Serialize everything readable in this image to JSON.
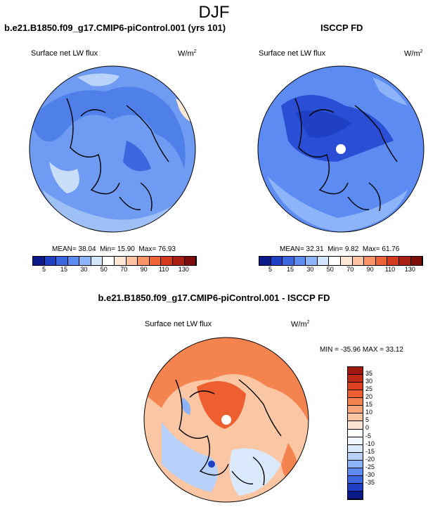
{
  "page_title": "DJF",
  "colors": {
    "seq": [
      "#0a1a8a",
      "#1f3fc4",
      "#3b68e0",
      "#5c8bf2",
      "#8db3f8",
      "#d2e6fb",
      "#ffffff",
      "#fde7d6",
      "#fbc3a2",
      "#f89466",
      "#ee6436",
      "#d63a1e",
      "#a81e12",
      "#7d0c0a"
    ],
    "diff": [
      "#0a1a8a",
      "#1f3fc4",
      "#3b68e0",
      "#5c8bf2",
      "#8db3f8",
      "#b7d1fa",
      "#d9e8fb",
      "#f0f6fd",
      "#ffffff",
      "#fde4d3",
      "#fbc6a3",
      "#f9a67a",
      "#f5834f",
      "#ed5f30",
      "#dc4020",
      "#c12a16",
      "#a1180f"
    ],
    "land": "#000000"
  },
  "chart_data": [
    {
      "type": "heatmap",
      "projection": "north-polar-stereographic",
      "title": "b.e21.B1850.f09_g17.CMIP6-piControl.001 (yrs 101)",
      "variable": "Surface net LW flux",
      "units": "W/m",
      "units_exp": "2",
      "mean": "38.04",
      "min": "15.90",
      "max": "76.93",
      "colorbar_levels": [
        "5",
        "15",
        "30",
        "50",
        "70",
        "90",
        "110",
        "130"
      ],
      "colorbar_ticks": [
        5,
        15,
        30,
        50,
        70,
        90,
        110,
        130
      ]
    },
    {
      "type": "heatmap",
      "projection": "north-polar-stereographic",
      "title": "ISCCP FD",
      "variable": "Surface net LW flux",
      "units": "W/m",
      "units_exp": "2",
      "mean": "32.31",
      "min": "9.82",
      "max": "61.76",
      "colorbar_levels": [
        "5",
        "15",
        "30",
        "50",
        "70",
        "90",
        "110",
        "130"
      ],
      "colorbar_ticks": [
        5,
        15,
        30,
        50,
        70,
        90,
        110,
        130
      ]
    },
    {
      "type": "heatmap",
      "projection": "north-polar-stereographic",
      "title": "b.e21.B1850.f09_g17.CMIP6-piControl.001 - ISCCP FD",
      "variable": "Surface net LW flux",
      "units": "W/m",
      "units_exp": "2",
      "min": "-35.96",
      "max": "33.12",
      "minmax_label": "MIN = -35.96 MAX = 33.12",
      "colorbar_labels": [
        "35",
        "30",
        "25",
        "20",
        "15",
        "10",
        "5",
        "0",
        "-5",
        "-10",
        "-15",
        "-20",
        "-25",
        "-30",
        "-35"
      ],
      "colorbar_ticks": [
        35,
        30,
        25,
        20,
        15,
        10,
        5,
        0,
        -5,
        -10,
        -15,
        -20,
        -25,
        -30,
        -35
      ]
    }
  ]
}
